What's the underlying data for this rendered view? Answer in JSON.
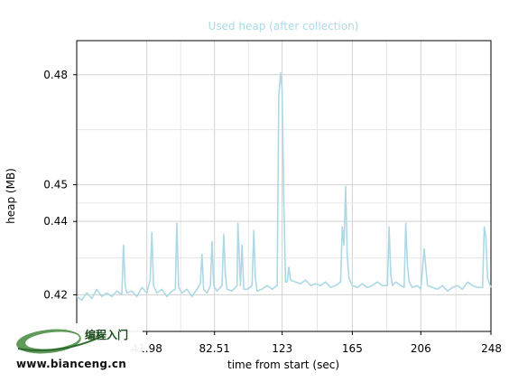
{
  "chart_data": {
    "type": "line",
    "title": "Used heap (after collection)",
    "xlabel": "time from start (sec)",
    "ylabel": "heap (MB)",
    "xlim": [
      0,
      248
    ],
    "ylim": [
      0.41,
      0.4893
    ],
    "x_ticks": [
      41.98,
      82.51,
      123,
      165,
      206,
      248
    ],
    "x_tick_labels": [
      "41.98",
      "82.51",
      "123",
      "165",
      "206",
      "248"
    ],
    "y_ticks": [
      0.42,
      0.44,
      0.45,
      0.48
    ],
    "y_tick_labels": [
      "0.42",
      "0.44",
      "0.45",
      "0.48"
    ],
    "grid": true,
    "series": [
      {
        "color": "#add8e6",
        "x": [
          0,
          3,
          6,
          9,
          12,
          15,
          18,
          21,
          24,
          27,
          28,
          29,
          30,
          33,
          36,
          39,
          42,
          44,
          45,
          46,
          48,
          51,
          54,
          57,
          59,
          60,
          61,
          63,
          66,
          69,
          72,
          74,
          75,
          76,
          78,
          80,
          81,
          82,
          84,
          87,
          88,
          89,
          90,
          93,
          96,
          96.5,
          98,
          99,
          100,
          102,
          105,
          106,
          107,
          108,
          111,
          114,
          117,
          120,
          121,
          122,
          123,
          124,
          125,
          126,
          127,
          128,
          131,
          134,
          137,
          140,
          143,
          146,
          149,
          152,
          155,
          158,
          159,
          160,
          161,
          162,
          163,
          164,
          165,
          168,
          171,
          174,
          177,
          180,
          183,
          186,
          187,
          188,
          189,
          191,
          194,
          196,
          197,
          198,
          199,
          201,
          204,
          206,
          208,
          210,
          213,
          216,
          219,
          222,
          225,
          228,
          231,
          234,
          237,
          240,
          243,
          244,
          245,
          246,
          248
        ],
        "values": [
          0.4195,
          0.4185,
          0.4205,
          0.419,
          0.4215,
          0.4195,
          0.4205,
          0.4195,
          0.421,
          0.42,
          0.4335,
          0.4225,
          0.4205,
          0.421,
          0.4195,
          0.422,
          0.4205,
          0.424,
          0.437,
          0.4225,
          0.4205,
          0.4215,
          0.4195,
          0.421,
          0.4215,
          0.4395,
          0.422,
          0.4205,
          0.4215,
          0.4195,
          0.4215,
          0.423,
          0.431,
          0.4215,
          0.4205,
          0.4225,
          0.4345,
          0.4225,
          0.421,
          0.4225,
          0.4365,
          0.4255,
          0.4215,
          0.421,
          0.4225,
          0.4395,
          0.4225,
          0.4335,
          0.4215,
          0.4215,
          0.4225,
          0.4375,
          0.4245,
          0.421,
          0.4215,
          0.4225,
          0.4215,
          0.4225,
          0.474,
          0.4805,
          0.476,
          0.4455,
          0.4235,
          0.4235,
          0.4275,
          0.424,
          0.4235,
          0.423,
          0.424,
          0.4225,
          0.423,
          0.4225,
          0.4235,
          0.422,
          0.4225,
          0.4235,
          0.4385,
          0.4335,
          0.4495,
          0.4305,
          0.4245,
          0.4235,
          0.4225,
          0.422,
          0.423,
          0.422,
          0.4225,
          0.4235,
          0.4225,
          0.4225,
          0.4385,
          0.4255,
          0.4225,
          0.4235,
          0.4225,
          0.422,
          0.4395,
          0.428,
          0.4235,
          0.422,
          0.4225,
          0.4215,
          0.4325,
          0.4225,
          0.422,
          0.4215,
          0.4225,
          0.421,
          0.422,
          0.4225,
          0.4215,
          0.4235,
          0.4225,
          0.422,
          0.422,
          0.4385,
          0.4355,
          0.4245,
          0.422
        ]
      }
    ]
  },
  "watermark": {
    "cn_text": "编程入门",
    "url_text": "www.bianceng.cn"
  }
}
